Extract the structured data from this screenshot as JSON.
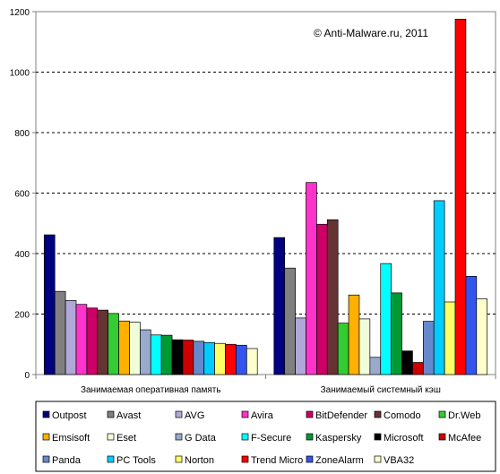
{
  "chart_data": {
    "type": "bar",
    "title": "",
    "watermark": "© Anti-Malware.ru,  2011",
    "xlabel": "",
    "ylabel": "",
    "ylim": [
      0,
      1200
    ],
    "yticks": [
      0,
      200,
      400,
      600,
      800,
      1000,
      1200
    ],
    "grid": "horizontal-dashed",
    "legend_position": "bottom",
    "categories": [
      "Занимаемая оперативная память",
      "Занимаемый системный кэш"
    ],
    "series": [
      {
        "name": "Outpost",
        "color": "#000080",
        "values": [
          462,
          453
        ]
      },
      {
        "name": "Avast",
        "color": "#808080",
        "values": [
          275,
          352
        ]
      },
      {
        "name": "AVG",
        "color": "#b0a8d8",
        "values": [
          245,
          187
        ]
      },
      {
        "name": "Avira",
        "color": "#ff33cc",
        "values": [
          232,
          635
        ]
      },
      {
        "name": "BitDefender",
        "color": "#cc0066",
        "values": [
          220,
          497
        ]
      },
      {
        "name": "Comodo",
        "color": "#663333",
        "values": [
          213,
          512
        ]
      },
      {
        "name": "Dr.Web",
        "color": "#33cc33",
        "values": [
          202,
          170
        ]
      },
      {
        "name": "Emsisoft",
        "color": "#ffb000",
        "values": [
          177,
          263
        ]
      },
      {
        "name": "Eset",
        "color": "#f0ffd8",
        "values": [
          173,
          184
        ]
      },
      {
        "name": "G Data",
        "color": "#99aacc",
        "values": [
          148,
          57
        ]
      },
      {
        "name": "F-Secure",
        "color": "#00ffff",
        "values": [
          131,
          367
        ]
      },
      {
        "name": "Kaspersky",
        "color": "#009933",
        "values": [
          130,
          270
        ]
      },
      {
        "name": "Microsoft",
        "color": "#000000",
        "values": [
          115,
          78
        ]
      },
      {
        "name": "McAfee",
        "color": "#cc0000",
        "values": [
          114,
          40
        ]
      },
      {
        "name": "Panda",
        "color": "#6688cc",
        "values": [
          110,
          176
        ]
      },
      {
        "name": "PC Tools",
        "color": "#00ccff",
        "values": [
          106,
          575
        ]
      },
      {
        "name": "Norton",
        "color": "#ffff66",
        "values": [
          103,
          240
        ]
      },
      {
        "name": "Trend Micro",
        "color": "#ff0000",
        "values": [
          100,
          1175
        ]
      },
      {
        "name": "ZoneAlarm",
        "color": "#3355ee",
        "values": [
          97,
          325
        ]
      },
      {
        "name": "VBA32",
        "color": "#ffffcc",
        "values": [
          86,
          250
        ]
      }
    ]
  }
}
